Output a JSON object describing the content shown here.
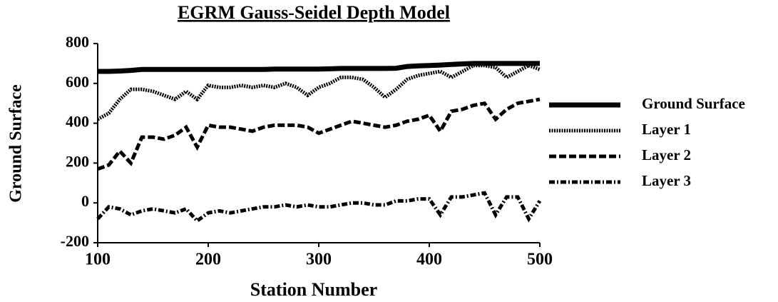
{
  "chart_data": {
    "type": "line",
    "title": "EGRM  Gauss-Seidel  Depth  Model",
    "x_label": "Station  Number",
    "y_label": "Ground Surface",
    "x": [
      100,
      110,
      120,
      130,
      140,
      150,
      160,
      170,
      180,
      190,
      200,
      210,
      220,
      230,
      240,
      250,
      260,
      270,
      280,
      290,
      300,
      310,
      320,
      330,
      340,
      350,
      360,
      370,
      380,
      390,
      400,
      410,
      420,
      430,
      440,
      450,
      460,
      470,
      480,
      490,
      500
    ],
    "series": [
      {
        "name": "Ground Surface",
        "color": "#000000",
        "style": "solid",
        "values": [
          660,
          660,
          662,
          665,
          670,
          670,
          670,
          670,
          670,
          670,
          670,
          670,
          670,
          670,
          670,
          670,
          672,
          672,
          672,
          672,
          672,
          673,
          675,
          675,
          675,
          675,
          675,
          676,
          685,
          688,
          690,
          692,
          695,
          698,
          700,
          700,
          700,
          700,
          700,
          700,
          700
        ]
      },
      {
        "name": "Layer 1",
        "color": "#000000",
        "style": "dotted",
        "values": [
          420,
          450,
          520,
          570,
          570,
          560,
          540,
          520,
          560,
          520,
          590,
          580,
          580,
          590,
          580,
          590,
          580,
          600,
          580,
          540,
          580,
          600,
          630,
          630,
          620,
          580,
          530,
          570,
          620,
          640,
          650,
          660,
          630,
          660,
          690,
          690,
          680,
          630,
          660,
          690,
          670
        ]
      },
      {
        "name": "Layer 2",
        "color": "#000000",
        "style": "dashed",
        "values": [
          170,
          190,
          260,
          200,
          330,
          330,
          320,
          340,
          380,
          280,
          390,
          380,
          380,
          370,
          360,
          380,
          390,
          390,
          390,
          380,
          350,
          370,
          390,
          410,
          400,
          390,
          380,
          390,
          410,
          420,
          440,
          360,
          460,
          470,
          490,
          500,
          420,
          470,
          500,
          510,
          520
        ]
      },
      {
        "name": "Layer 3",
        "color": "#000000",
        "style": "dashdot",
        "values": [
          -80,
          -20,
          -30,
          -60,
          -40,
          -30,
          -40,
          -50,
          -30,
          -90,
          -50,
          -40,
          -50,
          -40,
          -30,
          -20,
          -20,
          -10,
          -20,
          -10,
          -20,
          -20,
          -10,
          0,
          0,
          -10,
          -10,
          10,
          10,
          20,
          20,
          -60,
          30,
          30,
          40,
          50,
          -60,
          30,
          30,
          -80,
          10
        ]
      }
    ],
    "xlim": [
      100,
      500
    ],
    "xticks": [
      100,
      200,
      300,
      400,
      500
    ],
    "ylim": [
      -200,
      800
    ],
    "yticks": [
      -200,
      0,
      200,
      400,
      600,
      800
    ],
    "grid": false,
    "legend": "right"
  }
}
